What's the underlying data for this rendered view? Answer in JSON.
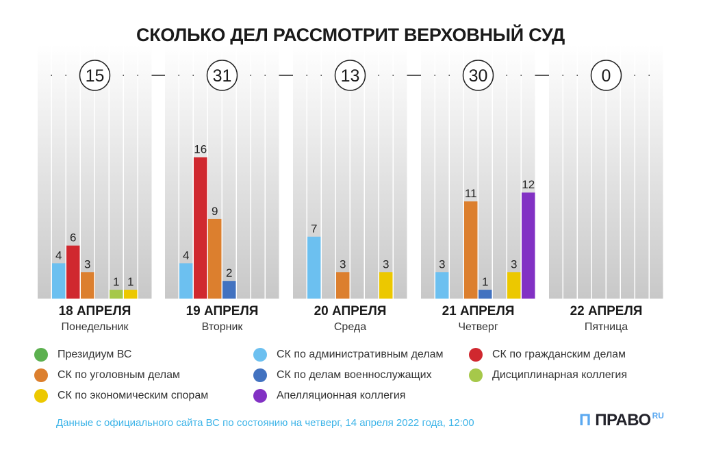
{
  "chart_data": {
    "type": "bar",
    "title": "СКОЛЬКО ДЕЛ РАССМОТРИТ ВЕРХОВНЫЙ СУД",
    "categories": [
      {
        "date": "18 АПРЕЛЯ",
        "weekday": "Понедельник",
        "total": 15
      },
      {
        "date": "19 АПРЕЛЯ",
        "weekday": "Вторник",
        "total": 31
      },
      {
        "date": "20 АПРЕЛЯ",
        "weekday": "Среда",
        "total": 13
      },
      {
        "date": "21 АПРЕЛЯ",
        "weekday": "Четверг",
        "total": 30
      },
      {
        "date": "22 АПРЕЛЯ",
        "weekday": "Пятница",
        "total": 0
      }
    ],
    "series": [
      {
        "name": "Президиум ВС",
        "color": "#5cb04f",
        "values": [
          0,
          0,
          0,
          0,
          0
        ]
      },
      {
        "name": "СК по административным делам",
        "color": "#6cc0f0",
        "values": [
          4,
          4,
          7,
          3,
          0
        ]
      },
      {
        "name": "СК по гражданским делам",
        "color": "#d0282f",
        "values": [
          6,
          16,
          0,
          0,
          0
        ]
      },
      {
        "name": "СК по уголовным делам",
        "color": "#dc7f2e",
        "values": [
          3,
          9,
          3,
          11,
          0
        ]
      },
      {
        "name": "СК по делам военнослужащих",
        "color": "#4272c0",
        "values": [
          0,
          2,
          0,
          1,
          0
        ]
      },
      {
        "name": "Дисциплинарная коллегия",
        "color": "#a6c84a",
        "values": [
          1,
          0,
          0,
          0,
          0
        ]
      },
      {
        "name": "СК по экономическим спорам",
        "color": "#ecc800",
        "values": [
          1,
          0,
          3,
          3,
          0
        ]
      },
      {
        "name": "Апелляционная коллегия",
        "color": "#8231c4",
        "values": [
          0,
          0,
          0,
          12,
          0
        ]
      }
    ],
    "legend_order": [
      0,
      3,
      6,
      1,
      4,
      7,
      2,
      5
    ],
    "grid": false
  },
  "footer": "Данные с официального сайта ВС по состоянию на четверг, 14 апреля 2022 года, 12:00",
  "logo": {
    "name": "ПРАВО",
    "suffix": "RU"
  }
}
